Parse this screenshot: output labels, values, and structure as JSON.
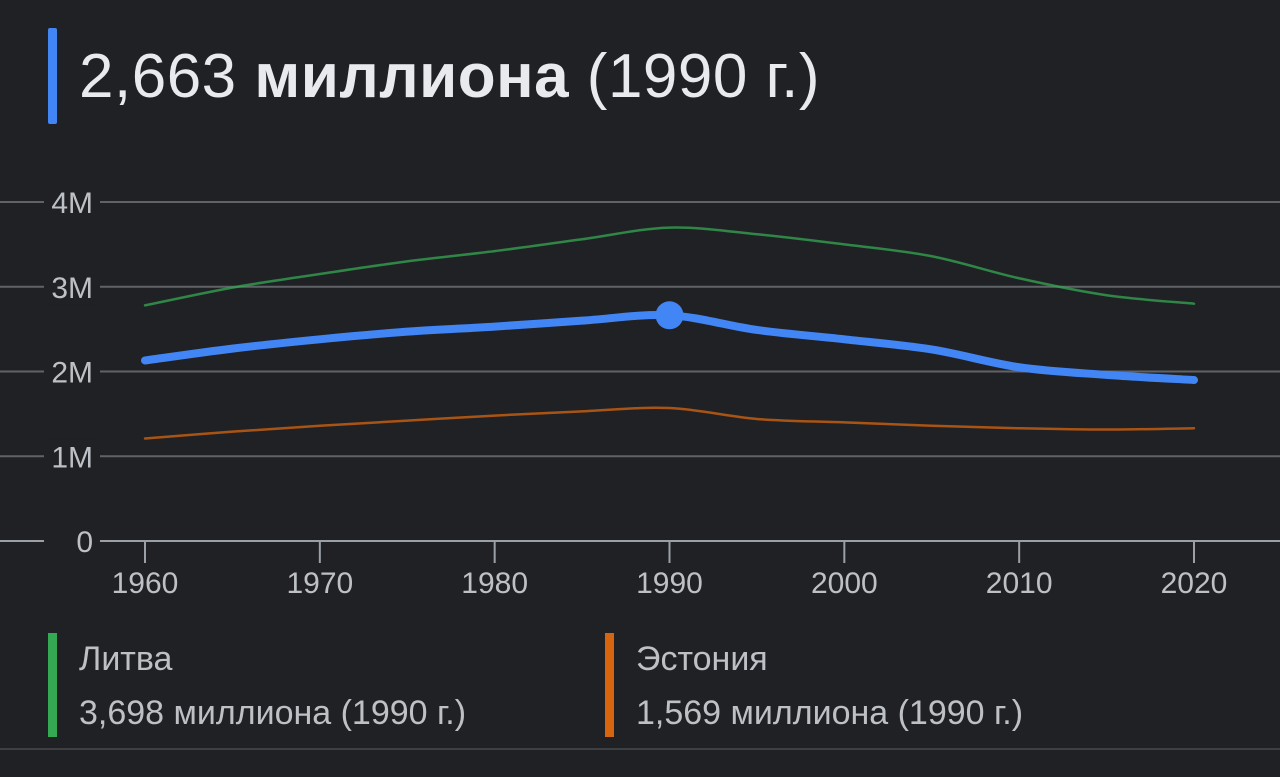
{
  "header": {
    "value": "2,663",
    "unit": "миллиона",
    "year": "(1990 г.)",
    "accent_color": "#4285f4"
  },
  "chart_data": {
    "type": "line",
    "x": [
      1960,
      1965,
      1970,
      1975,
      1980,
      1985,
      1990,
      1995,
      2000,
      2005,
      2010,
      2015,
      2020
    ],
    "xticks": [
      1960,
      1970,
      1980,
      1990,
      2000,
      2010,
      2020
    ],
    "yticks": [
      {
        "value": 0,
        "label": "0"
      },
      {
        "value": 1000000,
        "label": "1M"
      },
      {
        "value": 2000000,
        "label": "2M"
      },
      {
        "value": 3000000,
        "label": "3M"
      },
      {
        "value": 4000000,
        "label": "4M"
      }
    ],
    "xlim": [
      1960,
      2020
    ],
    "ylim": [
      0,
      4000000
    ],
    "grid": true,
    "highlight": {
      "series": 0,
      "x": 1990
    },
    "series": [
      {
        "id": "main",
        "color": "#4285f4",
        "emphasis": true,
        "values": [
          2130000,
          2270000,
          2380000,
          2470000,
          2530000,
          2600000,
          2663000,
          2490000,
          2380000,
          2260000,
          2050000,
          1960000,
          1900000
        ]
      },
      {
        "id": "lithuania",
        "color": "#34a853",
        "emphasis": false,
        "values": [
          2780000,
          2990000,
          3150000,
          3300000,
          3420000,
          3560000,
          3698000,
          3620000,
          3500000,
          3360000,
          3100000,
          2900000,
          2800000
        ]
      },
      {
        "id": "estonia",
        "color": "#d7650f",
        "emphasis": false,
        "values": [
          1210000,
          1290000,
          1360000,
          1420000,
          1480000,
          1530000,
          1569000,
          1440000,
          1400000,
          1360000,
          1330000,
          1315000,
          1330000
        ]
      }
    ]
  },
  "legend": [
    {
      "name": "Литва",
      "value": "3,698 миллиона (1990 г.)",
      "color": "#34a853"
    },
    {
      "name": "Эстония",
      "value": "1,569 миллиона (1990 г.)",
      "color": "#d7650f"
    }
  ]
}
